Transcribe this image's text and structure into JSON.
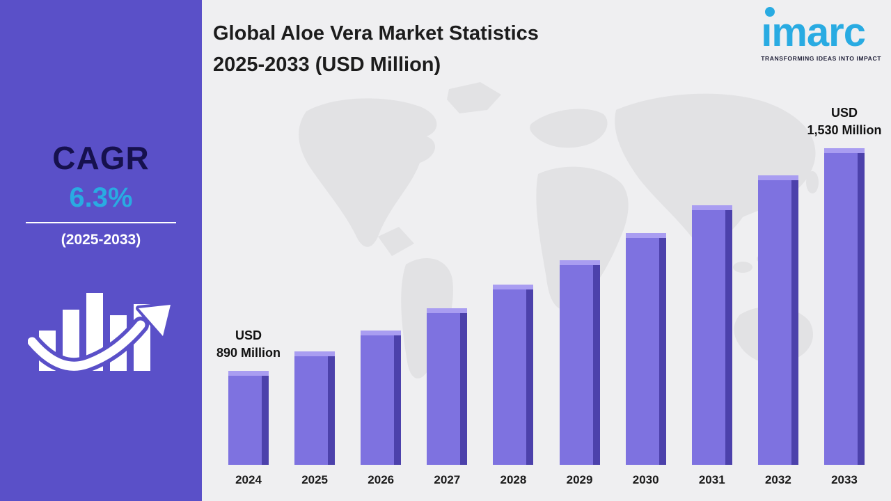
{
  "sidebar": {
    "cagr_label": "CAGR",
    "cagr_value": "6.3%",
    "cagr_period": "(2025-2033)"
  },
  "header": {
    "title_line1": "Global Aloe Vera Market Statistics",
    "title_line2": "2025-2033 (USD Million)"
  },
  "logo": {
    "text": "imarc",
    "tagline": "TRANSFORMING IDEAS INTO IMPACT"
  },
  "colors": {
    "sidebar_bg": "#5a50c8",
    "accent_cyan": "#29abe2",
    "bar": "#7e72e0",
    "bar_shadow": "#4c41ab",
    "bar_highlight": "#a99df1",
    "canvas_bg": "#efeff1",
    "map": "#e2e2e4",
    "title_text": "#1c1c1c",
    "cagr_text": "#16114e"
  },
  "chart_data": {
    "type": "bar",
    "title": "Global Aloe Vera Market Statistics 2025-2033 (USD Million)",
    "categories": [
      "2024",
      "2025",
      "2026",
      "2027",
      "2028",
      "2029",
      "2030",
      "2031",
      "2032",
      "2033"
    ],
    "values": [
      890,
      946,
      1006,
      1069,
      1137,
      1208,
      1285,
      1366,
      1452,
      1530
    ],
    "units": "USD Million",
    "cagr": "6.3%",
    "xlabel": "",
    "ylabel": "",
    "ylim": [
      620,
      1530
    ],
    "grid": false,
    "legend": false,
    "annotations": [
      {
        "index": 0,
        "line1": "USD",
        "line2": "890 Million"
      },
      {
        "index": 9,
        "line1": "USD",
        "line2": "1,530 Million"
      }
    ]
  }
}
